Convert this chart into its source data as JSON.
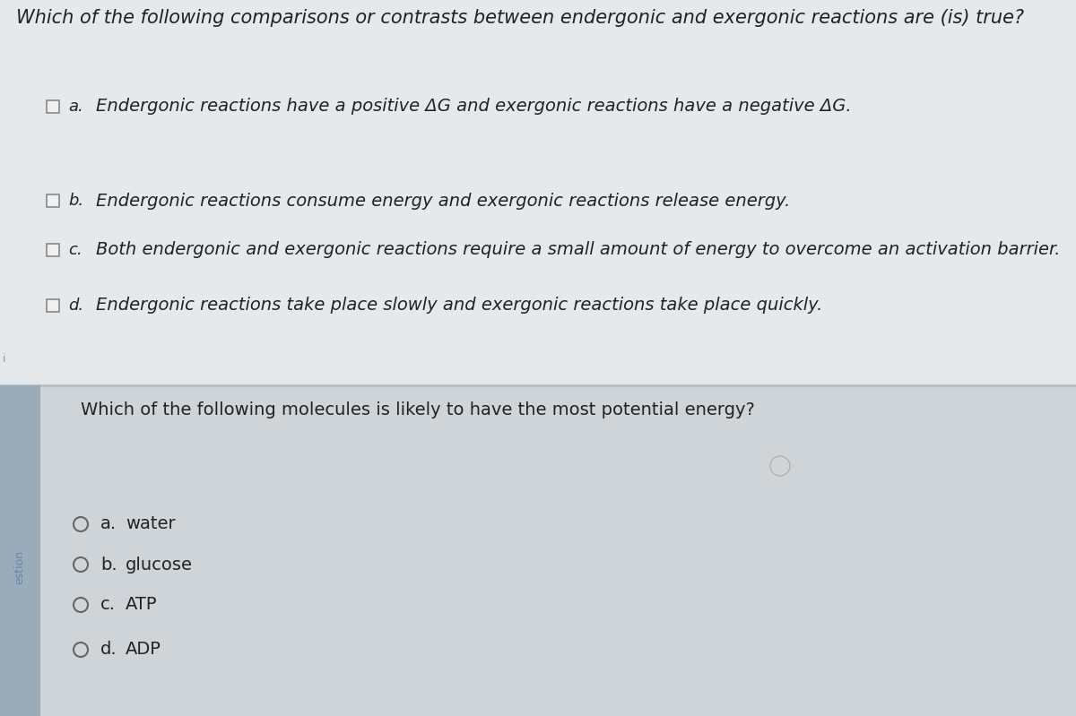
{
  "bg_top_color": "#e8eaec",
  "bg_bottom_color": "#cdd3d8",
  "section1_color": "#dde1e4",
  "section2_color": "#cfd4d9",
  "sidebar_left_color": "#b0bcc8",
  "sidebar_text_color": "#8899aa",
  "question1_title": "Which of the following comparisons or contrasts between endergonic and exergonic reactions are (is) true?",
  "question1_options": [
    {
      "label": "a.",
      "text": "Endergonic reactions have a positive ΔG and exergonic reactions have a negative ΔG."
    },
    {
      "label": "b.",
      "text": "Endergonic reactions consume energy and exergonic reactions release energy."
    },
    {
      "label": "c.",
      "text": "Both endergonic and exergonic reactions require a small amount of energy to overcome an activation barrier."
    },
    {
      "label": "d.",
      "text": "Endergonic reactions take place slowly and exergonic reactions take place quickly."
    }
  ],
  "question2_title": "Which of the following molecules is likely to have the most potential energy?",
  "question2_options": [
    {
      "label": "a.",
      "text": "water"
    },
    {
      "label": "b.",
      "text": "glucose"
    },
    {
      "label": "c.",
      "text": "ATP"
    },
    {
      "label": "d.",
      "text": "ADP"
    }
  ],
  "sidebar_text": "estion",
  "title_fontsize": 15,
  "option_fontsize": 14,
  "q2_title_fontsize": 14,
  "q2_option_fontsize": 14,
  "text_color": "#222222",
  "checkbox_color": "#888888",
  "radio_color": "#666666"
}
